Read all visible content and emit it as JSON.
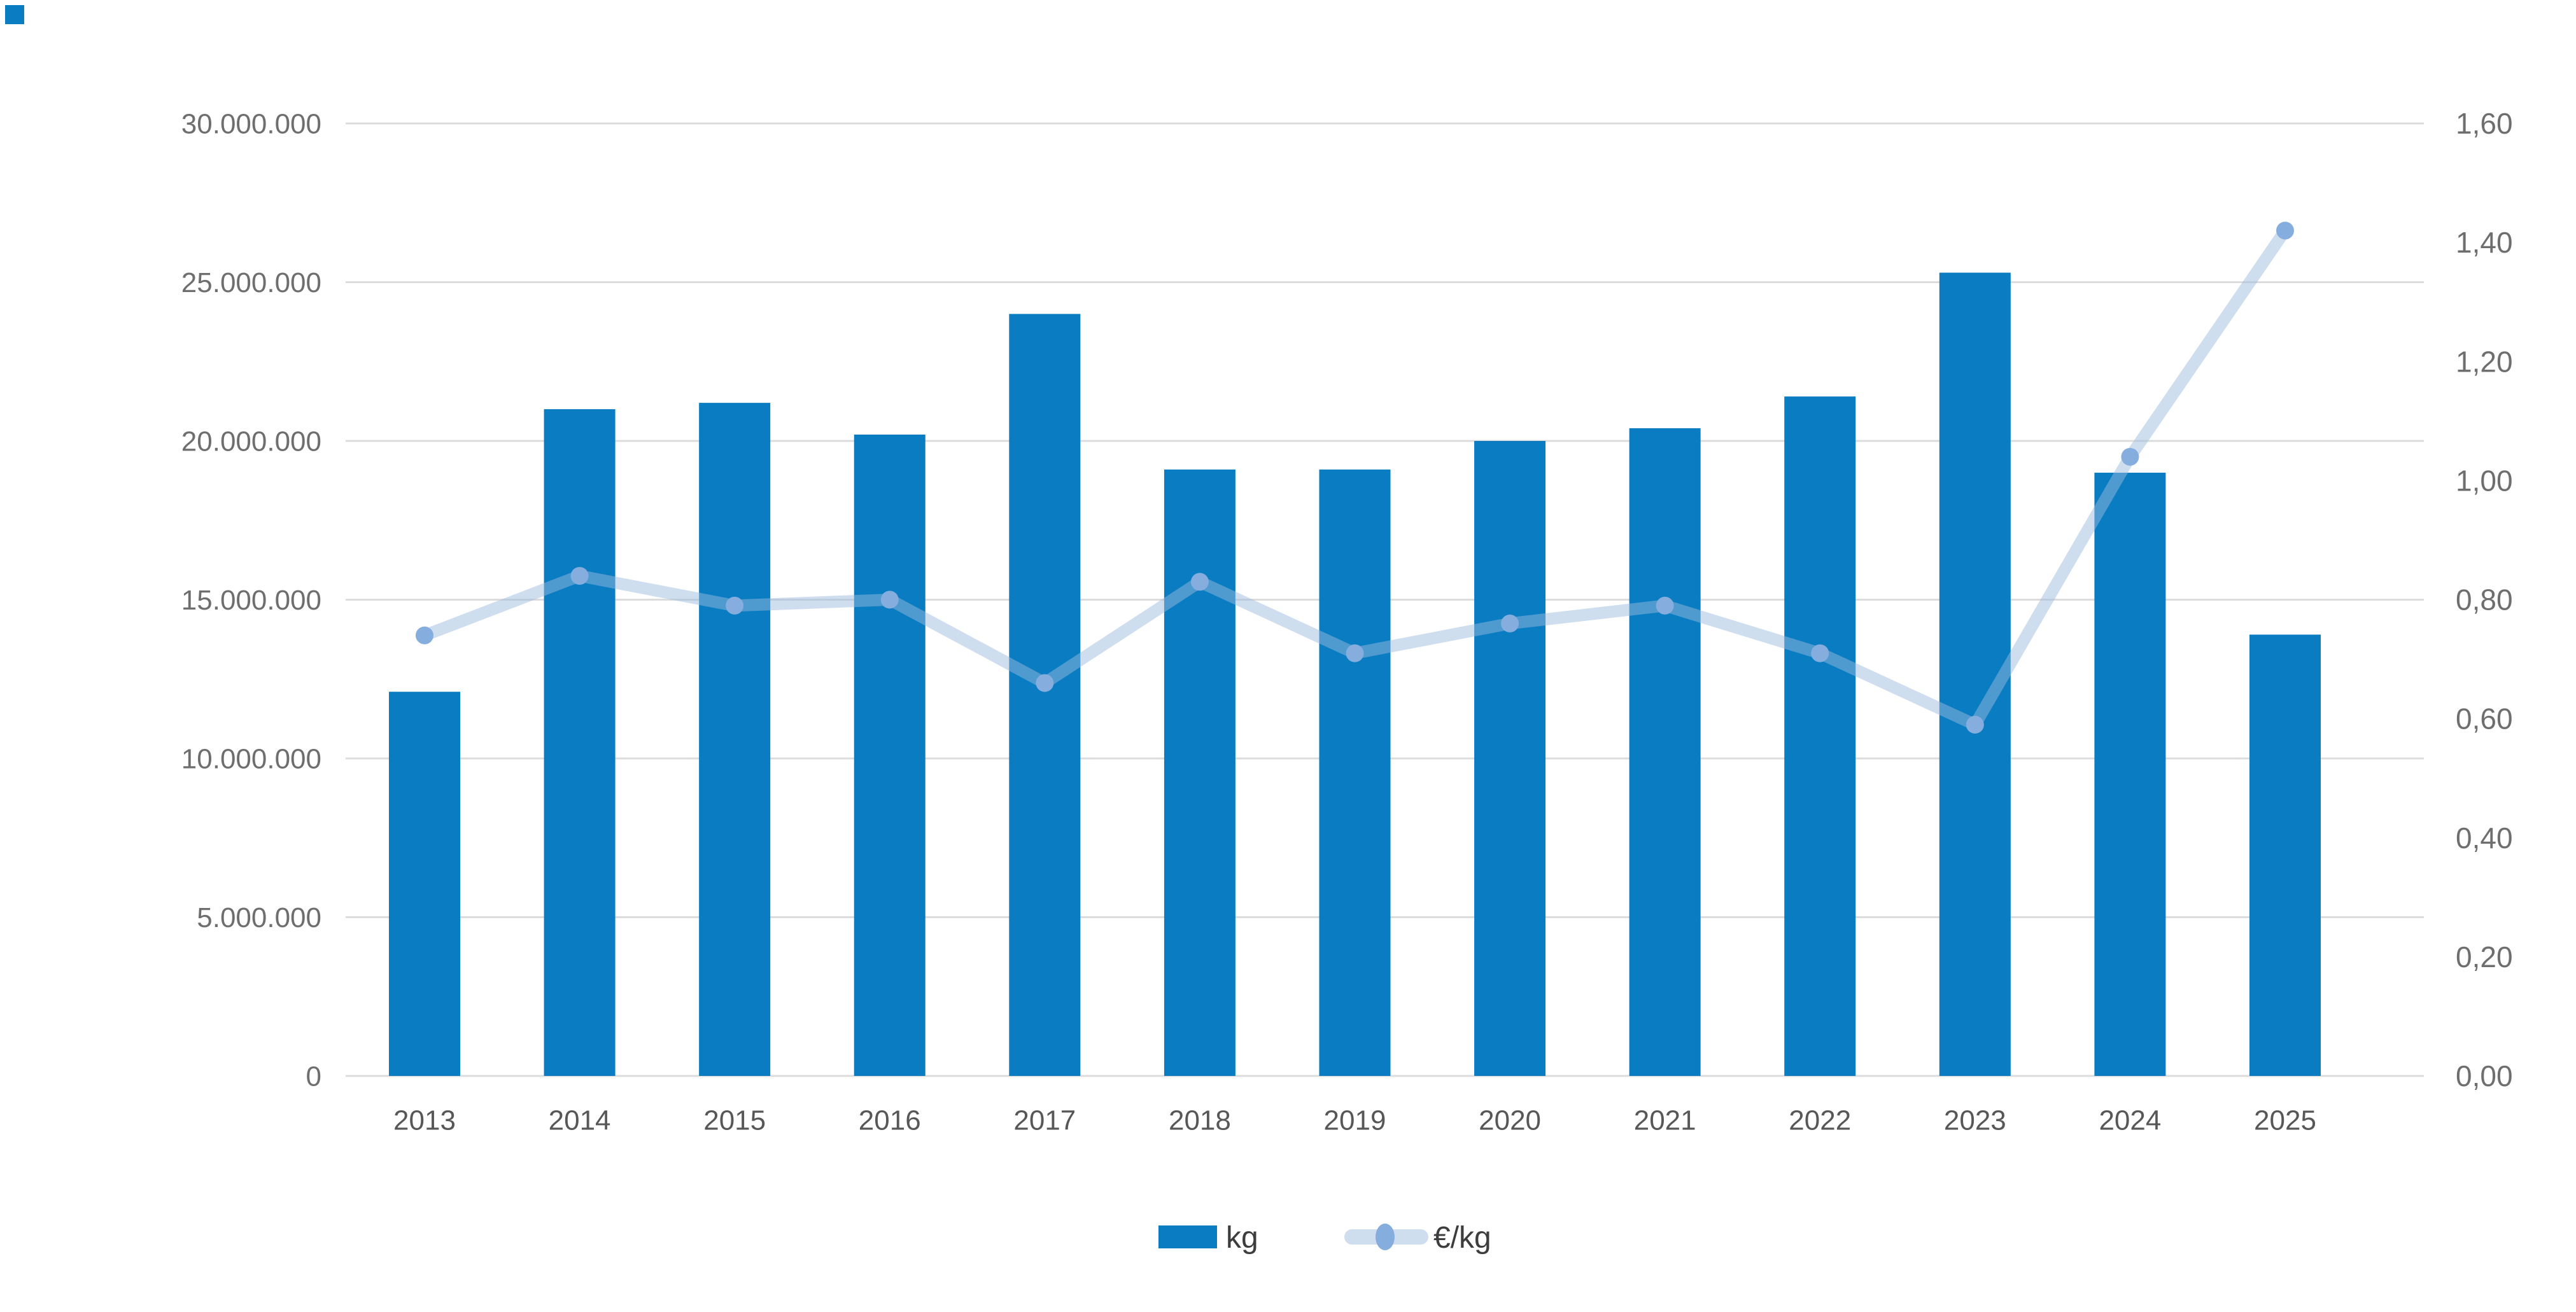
{
  "chart_data": {
    "type": "combo",
    "title": "",
    "categories": [
      "2013",
      "2014",
      "2015",
      "2016",
      "2017",
      "2018",
      "2019",
      "2020",
      "2021",
      "2022",
      "2023",
      "2024",
      "2025"
    ],
    "series": [
      {
        "name": "kg",
        "type": "bar",
        "axis": "left",
        "values": [
          12100000,
          21000000,
          21200000,
          20200000,
          24000000,
          19100000,
          19100000,
          20000000,
          20400000,
          21400000,
          25300000,
          19000000,
          13900000
        ]
      },
      {
        "name": "€/kg",
        "type": "line",
        "axis": "right",
        "values": [
          0.74,
          0.84,
          0.79,
          0.8,
          0.66,
          0.83,
          0.71,
          0.76,
          0.79,
          0.71,
          0.59,
          1.04,
          1.42
        ]
      }
    ],
    "left_axis": {
      "min": 0,
      "max": 30000000,
      "step": 5000000,
      "tick_labels": [
        "0",
        "5.000.000",
        "10.000.000",
        "15.000.000",
        "20.000.000",
        "25.000.000",
        "30.000.000"
      ]
    },
    "right_axis": {
      "min": 0,
      "max": 1.6,
      "step": 0.2,
      "tick_labels": [
        "0,00",
        "0,20",
        "0,40",
        "0,60",
        "0,80",
        "1,00",
        "1,20",
        "1,40",
        "1,60"
      ]
    },
    "grid": true,
    "legend_position": "bottom"
  },
  "legend": {
    "kg_label": "kg",
    "price_label": "€/kg"
  },
  "colors": {
    "bar": "#0a7dc2",
    "line": "#9bbade",
    "dot": "#85aede",
    "grid": "#dcdcdc",
    "axis_text": "#6e6e6e",
    "year_text": "#575757",
    "legend_text": "#3d3d3d",
    "background": "#ffffff",
    "corner_mark": "#0a7dc2"
  }
}
